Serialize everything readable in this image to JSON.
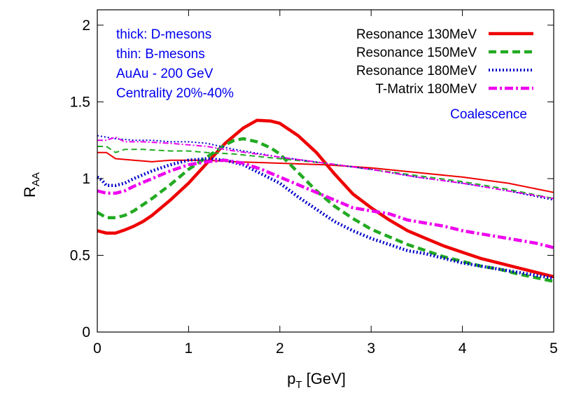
{
  "chart_data": {
    "type": "line",
    "title": "",
    "xlabel": "p",
    "xlabel_sub": "T",
    "xlabel_unit": " [GeV]",
    "ylabel": "R",
    "ylabel_sub": "AA",
    "xlim": [
      0,
      5
    ],
    "ylim": [
      0,
      2.1
    ],
    "xticks": [
      0,
      1,
      2,
      3,
      4,
      5
    ],
    "yticks": [
      0,
      0.5,
      1,
      1.5,
      2
    ],
    "xtick_labels": [
      "0",
      "1",
      "2",
      "3",
      "4",
      "5"
    ],
    "ytick_labels": [
      "0",
      "0.5",
      "1",
      "1.5",
      "2"
    ],
    "grid": false,
    "legend_position": "top-right",
    "annotations": [
      "thick: D-mesons",
      "thin: B-mesons",
      "AuAu - 200 GeV",
      "Centrality 20%-40%",
      "Coalescence"
    ],
    "series": [
      {
        "name": "Resonance 130MeV",
        "meson": "D",
        "color": "#ee0000",
        "dash": "",
        "width": 4.5,
        "x": [
          0,
          0.1,
          0.2,
          0.3,
          0.4,
          0.5,
          0.6,
          0.8,
          1.0,
          1.2,
          1.4,
          1.6,
          1.75,
          1.9,
          2.0,
          2.2,
          2.4,
          2.6,
          2.8,
          3.0,
          3.2,
          3.4,
          3.6,
          3.8,
          4.0,
          4.2,
          4.4,
          4.6,
          4.8,
          5.0
        ],
        "y": [
          0.66,
          0.645,
          0.645,
          0.665,
          0.69,
          0.72,
          0.76,
          0.86,
          0.97,
          1.1,
          1.23,
          1.33,
          1.38,
          1.375,
          1.36,
          1.28,
          1.17,
          1.03,
          0.9,
          0.81,
          0.73,
          0.66,
          0.61,
          0.56,
          0.52,
          0.48,
          0.45,
          0.42,
          0.39,
          0.36
        ]
      },
      {
        "name": "Resonance 130MeV",
        "meson": "B",
        "color": "#ee0000",
        "dash": "",
        "width": 2,
        "x": [
          0,
          0.1,
          0.2,
          0.4,
          0.6,
          0.8,
          1.0,
          1.2,
          1.5,
          2.0,
          2.5,
          3.0,
          3.5,
          4.0,
          4.5,
          5.0
        ],
        "y": [
          1.17,
          1.17,
          1.13,
          1.12,
          1.11,
          1.12,
          1.12,
          1.12,
          1.11,
          1.1,
          1.09,
          1.07,
          1.04,
          1.01,
          0.97,
          0.91
        ]
      },
      {
        "name": "Resonance 150MeV",
        "meson": "D",
        "color": "#22aa22",
        "dash": "11 6",
        "width": 4.5,
        "x": [
          0,
          0.1,
          0.2,
          0.3,
          0.4,
          0.5,
          0.6,
          0.8,
          1.0,
          1.2,
          1.4,
          1.5,
          1.6,
          1.75,
          1.9,
          2.0,
          2.2,
          2.4,
          2.6,
          2.8,
          3.0,
          3.2,
          3.4,
          3.6,
          3.8,
          4.0,
          4.2,
          4.4,
          4.6,
          4.8,
          5.0
        ],
        "y": [
          0.78,
          0.745,
          0.745,
          0.76,
          0.79,
          0.83,
          0.87,
          0.96,
          1.06,
          1.14,
          1.22,
          1.25,
          1.26,
          1.24,
          1.2,
          1.16,
          1.04,
          0.92,
          0.82,
          0.74,
          0.67,
          0.62,
          0.57,
          0.53,
          0.49,
          0.46,
          0.43,
          0.41,
          0.38,
          0.355,
          0.33
        ]
      },
      {
        "name": "Resonance 150MeV",
        "meson": "B",
        "color": "#22aa22",
        "dash": "8 5",
        "width": 2,
        "x": [
          0,
          0.1,
          0.2,
          0.3,
          0.5,
          0.8,
          1.0,
          1.2,
          1.5,
          2.0,
          2.5,
          3.0,
          3.5,
          4.0,
          4.5,
          5.0
        ],
        "y": [
          1.21,
          1.21,
          1.17,
          1.19,
          1.19,
          1.18,
          1.18,
          1.17,
          1.16,
          1.13,
          1.1,
          1.06,
          1.02,
          0.98,
          0.93,
          0.87
        ]
      },
      {
        "name": "Resonance 180MeV",
        "meson": "D",
        "color": "#0000cc",
        "dash": "2 3",
        "width": 4.5,
        "x": [
          0,
          0.05,
          0.1,
          0.2,
          0.3,
          0.4,
          0.6,
          0.8,
          1.0,
          1.2,
          1.4,
          1.6,
          1.8,
          2.0,
          2.2,
          2.4,
          2.6,
          2.8,
          3.0,
          3.2,
          3.4,
          3.6,
          3.8,
          4.0,
          4.2,
          4.4,
          4.6,
          4.8,
          5.0
        ],
        "y": [
          1.01,
          0.99,
          0.955,
          0.955,
          0.97,
          1.0,
          1.05,
          1.09,
          1.12,
          1.13,
          1.12,
          1.09,
          1.03,
          0.97,
          0.88,
          0.8,
          0.72,
          0.66,
          0.61,
          0.57,
          0.53,
          0.51,
          0.48,
          0.45,
          0.43,
          0.41,
          0.39,
          0.37,
          0.35
        ]
      },
      {
        "name": "Resonance 180MeV",
        "meson": "B",
        "color": "#0000cc",
        "dash": "2 3",
        "width": 2,
        "x": [
          0,
          0.2,
          0.4,
          0.6,
          0.8,
          1.0,
          1.2,
          1.5,
          2.0,
          2.5,
          3.0,
          3.5,
          4.0,
          4.5,
          5.0
        ],
        "y": [
          1.28,
          1.26,
          1.25,
          1.25,
          1.24,
          1.24,
          1.23,
          1.19,
          1.14,
          1.1,
          1.06,
          1.01,
          0.97,
          0.92,
          0.86
        ]
      },
      {
        "name": "T-Matrix 180MeV",
        "meson": "D",
        "color": "#ee00ee",
        "dash": "12 4 3 4",
        "width": 4.5,
        "x": [
          0,
          0.1,
          0.2,
          0.3,
          0.4,
          0.6,
          0.8,
          1.0,
          1.2,
          1.4,
          1.6,
          1.8,
          2.0,
          2.2,
          2.4,
          2.6,
          2.8,
          3.0,
          3.2,
          3.4,
          3.6,
          3.8,
          4.0,
          4.2,
          4.4,
          4.6,
          4.8,
          5.0
        ],
        "y": [
          0.92,
          0.905,
          0.905,
          0.92,
          0.95,
          1.0,
          1.05,
          1.09,
          1.11,
          1.12,
          1.1,
          1.06,
          1.01,
          0.96,
          0.91,
          0.86,
          0.81,
          0.79,
          0.77,
          0.73,
          0.71,
          0.69,
          0.66,
          0.64,
          0.62,
          0.6,
          0.58,
          0.55
        ]
      },
      {
        "name": "T-Matrix 180MeV",
        "meson": "B",
        "color": "#ee00ee",
        "dash": "8 3 2 3",
        "width": 2,
        "x": [
          0,
          0.1,
          0.2,
          0.3,
          0.5,
          0.8,
          1.0,
          1.2,
          1.5,
          2.0,
          2.5,
          3.0,
          3.5,
          4.0,
          4.5,
          5.0
        ],
        "y": [
          1.25,
          1.25,
          1.27,
          1.24,
          1.24,
          1.23,
          1.22,
          1.21,
          1.18,
          1.14,
          1.1,
          1.06,
          1.01,
          0.97,
          0.92,
          0.87
        ]
      }
    ]
  }
}
